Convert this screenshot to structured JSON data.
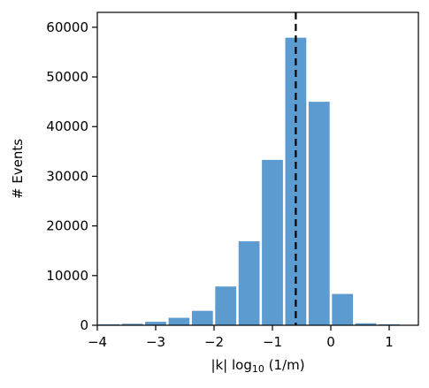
{
  "chart_data": {
    "type": "bar",
    "xlabel_main": "|k|  log",
    "xlabel_sub": "10",
    "xlabel_unit": " (1/m)",
    "ylabel": "# Events",
    "xlim": [
      -4,
      1.5
    ],
    "ylim": [
      0,
      63000
    ],
    "x_ticks": [
      -4,
      -3,
      -2,
      -1,
      0,
      1
    ],
    "x_tick_labels": [
      "−4",
      "−3",
      "−2",
      "−1",
      "0",
      "1"
    ],
    "y_ticks": [
      0,
      10000,
      20000,
      30000,
      40000,
      50000,
      60000
    ],
    "y_tick_labels": [
      "0",
      "10000",
      "20000",
      "30000",
      "40000",
      "50000",
      "60000"
    ],
    "bar_width": 0.36,
    "bar_color": "#5b9bd0",
    "bins": [
      {
        "x": -3.8,
        "value": 200
      },
      {
        "x": -3.4,
        "value": 300
      },
      {
        "x": -3.0,
        "value": 700
      },
      {
        "x": -2.6,
        "value": 1500
      },
      {
        "x": -2.2,
        "value": 2900
      },
      {
        "x": -1.8,
        "value": 7800
      },
      {
        "x": -1.4,
        "value": 16900
      },
      {
        "x": -1.0,
        "value": 33300
      },
      {
        "x": -0.6,
        "value": 57900
      },
      {
        "x": -0.2,
        "value": 45000
      },
      {
        "x": 0.2,
        "value": 6300
      },
      {
        "x": 0.6,
        "value": 400
      },
      {
        "x": 1.0,
        "value": 200
      }
    ],
    "reference_line": {
      "x": -0.6,
      "style": "dashed",
      "color": "#000000"
    },
    "grid": false
  }
}
